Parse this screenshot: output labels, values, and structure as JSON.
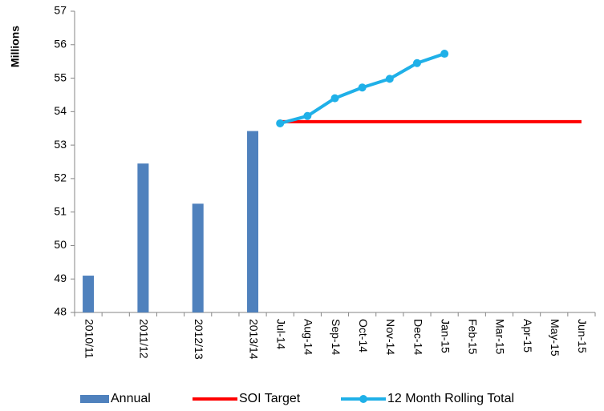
{
  "chart_data": {
    "type": "combo",
    "ylabel": "Millions",
    "categories": [
      "2010/11",
      null,
      "2011/12",
      null,
      "2012/13",
      null,
      "2013/14",
      "Jul-14",
      "Aug-14",
      "Sep-14",
      "Oct-14",
      "Nov-14",
      "Dec-14",
      "Jan-15",
      "Feb-15",
      "Mar-15",
      "Apr-15",
      "May-15",
      "Jun-15"
    ],
    "series": [
      {
        "name": "Annual",
        "type": "bar",
        "color": "#4f81bd",
        "values": [
          49.1,
          null,
          52.45,
          null,
          51.25,
          null,
          53.42,
          null,
          null,
          null,
          null,
          null,
          null,
          null,
          null,
          null,
          null,
          null,
          null
        ]
      },
      {
        "name": "SOI Target",
        "type": "line",
        "markers": false,
        "color": "#ff0000",
        "values": [
          null,
          null,
          null,
          null,
          null,
          null,
          null,
          53.7,
          53.7,
          53.7,
          53.7,
          53.7,
          53.7,
          53.7,
          53.7,
          53.7,
          53.7,
          53.7,
          53.7
        ]
      },
      {
        "name": "12 Month Rolling Total",
        "type": "line",
        "markers": true,
        "color": "#1fb0e8",
        "values": [
          null,
          null,
          null,
          null,
          null,
          null,
          null,
          53.65,
          53.87,
          54.4,
          54.72,
          54.98,
          55.45,
          55.73,
          null,
          null,
          null,
          null,
          null
        ]
      }
    ],
    "ylim": [
      48,
      57
    ],
    "yticks": [
      48,
      49,
      50,
      51,
      52,
      53,
      54,
      55,
      56,
      57
    ],
    "grid": false,
    "legend": "bottom"
  }
}
